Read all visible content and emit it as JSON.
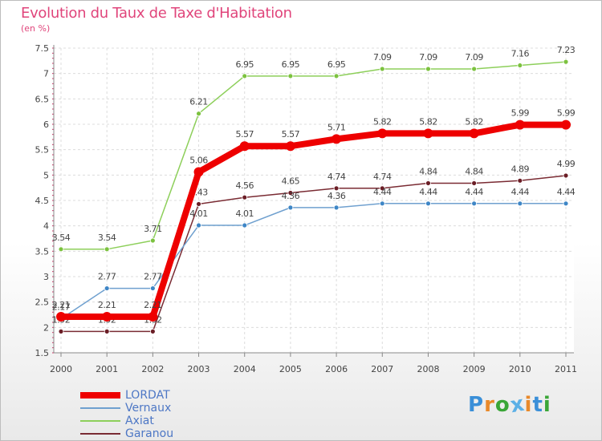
{
  "header": {
    "title": "Evolution du Taux de Taxe d'Habitation",
    "subtitle": "(en %)"
  },
  "logo": {
    "text": "Proxiti",
    "letter_colors": [
      "#3a8fd8",
      "#e8892a",
      "#3aa637",
      "#5cb0e6",
      "#e8892a",
      "#3a8fd8",
      "#3aa637"
    ]
  },
  "chart_data": {
    "type": "line",
    "title": "Evolution du Taux de Taxe d'Habitation",
    "subtitle": "(en %)",
    "x": [
      "2000",
      "2001",
      "2002",
      "2003",
      "2004",
      "2005",
      "2006",
      "2007",
      "2008",
      "2009",
      "2010",
      "2011"
    ],
    "ylim": [
      1.5,
      7.5
    ],
    "yticks": [
      "1.5",
      "2",
      "2.5",
      "3",
      "3.5",
      "4",
      "4.5",
      "5",
      "5.5",
      "6",
      "6.5",
      "7",
      "7.5"
    ],
    "grid": true,
    "legend": "bottom-left",
    "series": [
      {
        "name": "Axiat",
        "color": "#8dcf5a",
        "marker": "#7cc23f",
        "width": 1.5,
        "values": [
          3.54,
          3.54,
          3.71,
          6.21,
          6.95,
          6.95,
          6.95,
          7.09,
          7.09,
          7.09,
          7.16,
          7.23
        ],
        "labels": [
          "3.54",
          "3.54",
          "3.71",
          "6.21",
          "6.95",
          "6.95",
          "6.95",
          "7.09",
          "7.09",
          "7.09",
          "7.16",
          "7.23"
        ]
      },
      {
        "name": "Garanou",
        "color": "#7a2b33",
        "marker": "#6b1e26",
        "width": 1.5,
        "values": [
          1.92,
          1.92,
          1.92,
          4.43,
          4.56,
          4.65,
          4.74,
          4.74,
          4.84,
          4.84,
          4.89,
          4.99
        ],
        "labels": [
          "1.92",
          "1.92",
          "1.92",
          "4.43",
          "4.56",
          "4.65",
          "4.74",
          "4.74",
          "4.84",
          "4.84",
          "4.89",
          "4.99"
        ]
      },
      {
        "name": "Vernaux",
        "color": "#6fa0cf",
        "marker": "#3e86c6",
        "width": 1.5,
        "values": [
          2.17,
          2.77,
          2.77,
          4.01,
          4.01,
          4.36,
          4.36,
          4.44,
          4.44,
          4.44,
          4.44,
          4.44
        ],
        "labels": [
          "2.17",
          "2.77",
          "2.77",
          "4.01",
          "4.01",
          "4.36",
          "4.36",
          "4.44",
          "4.44",
          "4.44",
          "4.44",
          "4.44"
        ]
      },
      {
        "name": "LORDAT",
        "color": "#ee0000",
        "marker": "#ee0000",
        "width": 8,
        "values": [
          2.21,
          2.21,
          2.21,
          5.06,
          5.57,
          5.57,
          5.71,
          5.82,
          5.82,
          5.82,
          5.99,
          5.99
        ],
        "labels": [
          "2.21",
          "2.21",
          "2.21",
          "5.06",
          "5.57",
          "5.57",
          "5.71",
          "5.82",
          "5.82",
          "5.82",
          "5.99",
          "5.99"
        ]
      }
    ],
    "legend_order": [
      "LORDAT",
      "Vernaux",
      "Axiat",
      "Garanou"
    ]
  }
}
